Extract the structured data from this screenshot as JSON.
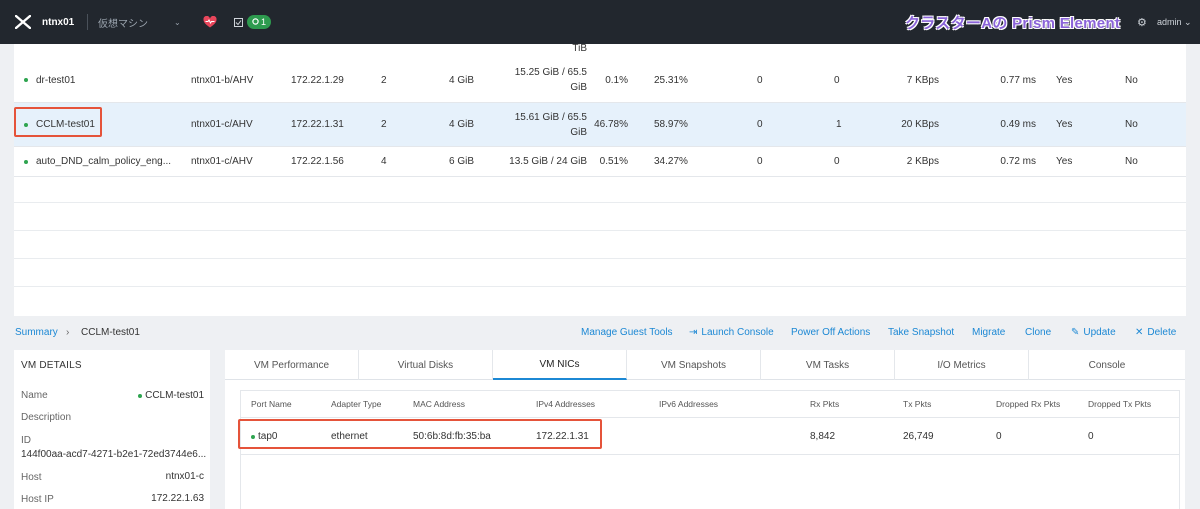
{
  "topbar": {
    "cluster_name": "ntnx01",
    "menu_label": "仮想マシン",
    "task_count": "1",
    "overlay_title": "クラスターAの Prism Element",
    "user_label": "admin"
  },
  "vm_table": {
    "partial_row_text": "TiB",
    "rows": [
      {
        "name": "dr-test01",
        "host": "ntnx01-b/AHV",
        "ip": "172.22.1.29",
        "cores": "2",
        "memory": "4 GiB",
        "storage_line1": "15.25 GiB / 65.5",
        "storage_line2": "GiB",
        "cpu": "0.1%",
        "mem_usage": "25.31%",
        "iops": "0",
        "latency_count": "0",
        "bandwidth": "7 KBps",
        "latency": "0.77 ms",
        "flash_mode": "Yes",
        "ha": "No"
      },
      {
        "name": "CCLM-test01",
        "host": "ntnx01-c/AHV",
        "ip": "172.22.1.31",
        "cores": "2",
        "memory": "4 GiB",
        "storage_line1": "15.61 GiB / 65.5",
        "storage_line2": "GiB",
        "cpu": "46.78%",
        "mem_usage": "58.97%",
        "iops": "0",
        "latency_count": "1",
        "bandwidth": "20 KBps",
        "latency": "0.49 ms",
        "flash_mode": "Yes",
        "ha": "No"
      },
      {
        "name": "auto_DND_calm_policy_eng...",
        "host": "ntnx01-c/AHV",
        "ip": "172.22.1.56",
        "cores": "4",
        "memory": "6 GiB",
        "storage_line1": "13.5 GiB / 24 GiB",
        "storage_line2": "",
        "cpu": "0.51%",
        "mem_usage": "34.27%",
        "iops": "0",
        "latency_count": "0",
        "bandwidth": "2 KBps",
        "latency": "0.72 ms",
        "flash_mode": "Yes",
        "ha": "No"
      }
    ]
  },
  "breadcrumb": {
    "root": "Summary",
    "separator": "›",
    "current": "CCLM-test01"
  },
  "actions": {
    "manage_guest_tools": "Manage Guest Tools",
    "launch_console": "Launch Console",
    "power_off": "Power Off Actions",
    "take_snapshot": "Take Snapshot",
    "migrate": "Migrate",
    "clone": "Clone",
    "update": "Update",
    "delete": "Delete"
  },
  "vm_details": {
    "heading": "VM DETAILS",
    "name_label": "Name",
    "name_value": "CCLM-test01",
    "description_label": "Description",
    "id_label": "ID",
    "id_value": "144f00aa-acd7-4271-b2e1-72ed3744e6...",
    "host_label": "Host",
    "host_value": "ntnx01-c",
    "host_ip_label": "Host IP",
    "host_ip_value": "172.22.1.63"
  },
  "tabs": [
    "VM Performance",
    "Virtual Disks",
    "VM NICs",
    "VM Snapshots",
    "VM Tasks",
    "I/O Metrics",
    "Console"
  ],
  "nic_table": {
    "headers": [
      "Port Name",
      "Adapter Type",
      "MAC Address",
      "IPv4 Addresses",
      "IPv6 Addresses",
      "Rx Pkts",
      "Tx Pkts",
      "Dropped Rx Pkts",
      "Dropped Tx Pkts"
    ],
    "row": {
      "port_name": "tap0",
      "adapter_type": "ethernet",
      "mac": "50:6b:8d:fb:35:ba",
      "ipv4": "172.22.1.31",
      "ipv6": "",
      "rx_pkts": "8,842",
      "tx_pkts": "26,749",
      "dropped_rx": "0",
      "dropped_tx": "0"
    }
  },
  "colors": {
    "accent": "#1c88d4",
    "highlight": "#e5533a",
    "status_green": "#2ea44f",
    "topbar": "#22272e"
  }
}
